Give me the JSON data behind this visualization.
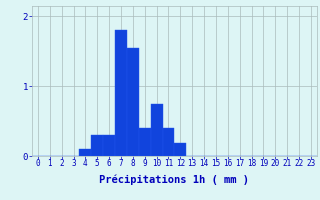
{
  "categories": [
    0,
    1,
    2,
    3,
    4,
    5,
    6,
    7,
    8,
    9,
    10,
    11,
    12,
    13,
    14,
    15,
    16,
    17,
    18,
    19,
    20,
    21,
    22,
    23
  ],
  "values": [
    0,
    0,
    0,
    0,
    0.1,
    0.3,
    0.3,
    1.8,
    1.55,
    0.4,
    0.75,
    0.4,
    0.18,
    0,
    0,
    0,
    0,
    0,
    0,
    0,
    0,
    0,
    0,
    0
  ],
  "bar_color": "#1144dd",
  "bar_edge_color": "#2255ee",
  "background_color": "#ddf5f5",
  "grid_color": "#aabbbb",
  "xlabel": "Précipitations 1h ( mm )",
  "xlabel_color": "#0000bb",
  "tick_color": "#0000bb",
  "ylim": [
    0,
    2.15
  ],
  "yticks": [
    0,
    1,
    2
  ],
  "xlim": [
    -0.5,
    23.5
  ],
  "tick_fontsize": 5.5,
  "ylabel_fontsize": 6.5,
  "xlabel_fontsize": 7.5
}
